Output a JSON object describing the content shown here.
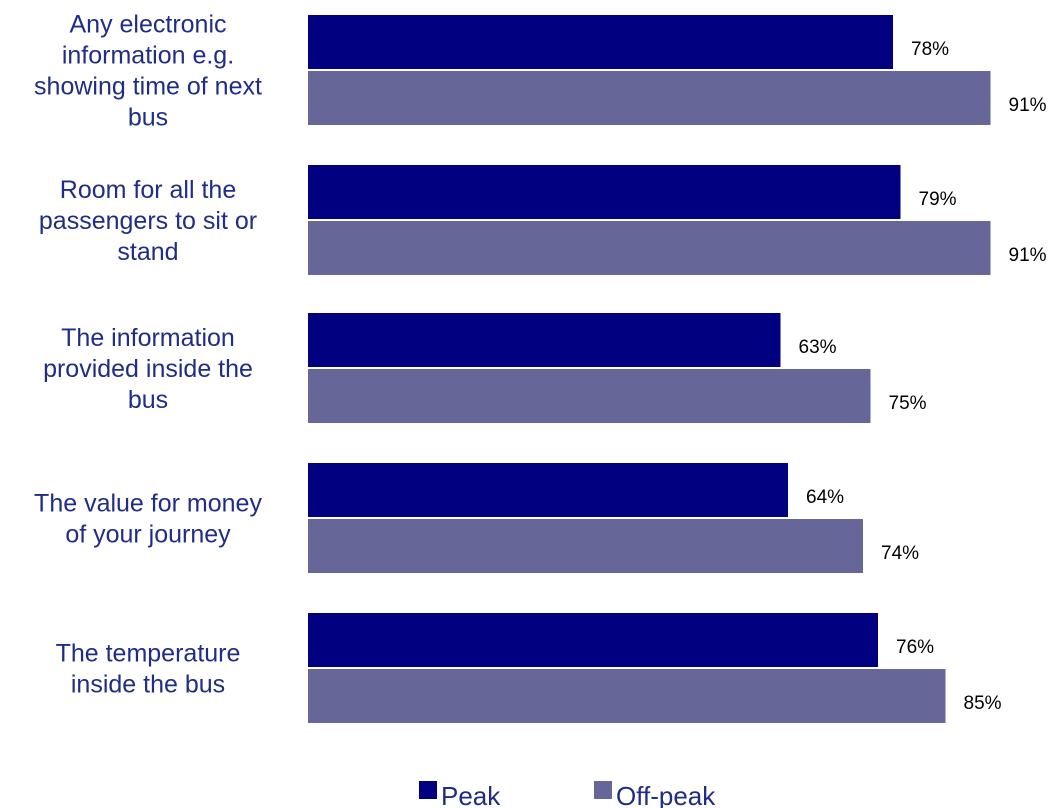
{
  "colors": {
    "peak": "#000080",
    "off_peak": "#666699",
    "category_text": "#1f2d86",
    "value_text": "#000000"
  },
  "chart_data": {
    "type": "bar",
    "orientation": "horizontal",
    "categories": [
      "Any electronic information e.g. showing time of next bus",
      "Room for all the passengers to sit or stand",
      "The information provided inside the bus",
      "The value for money of your journey",
      "The temperature inside the bus"
    ],
    "category_lines": [
      [
        "Any electronic",
        "information e.g.",
        "showing time of next",
        "bus"
      ],
      [
        "Room for all the",
        "passengers to sit or",
        "stand"
      ],
      [
        "The information",
        "provided inside the",
        "bus"
      ],
      [
        "The value for money",
        "of your journey"
      ],
      [
        "The temperature",
        "inside the bus"
      ]
    ],
    "series": [
      {
        "name": "Peak",
        "values": [
          78,
          79,
          63,
          64,
          76
        ],
        "labels": [
          "78%",
          "79%",
          "63%",
          "64%",
          "76%"
        ]
      },
      {
        "name": "Off-peak",
        "values": [
          91,
          91,
          75,
          74,
          85
        ],
        "labels": [
          "91%",
          "91%",
          "75%",
          "74%",
          "85%"
        ]
      }
    ],
    "xlim": [
      0,
      100
    ],
    "grid": false,
    "legend_position": "bottom-center",
    "title": "",
    "xlabel": "",
    "ylabel": ""
  }
}
